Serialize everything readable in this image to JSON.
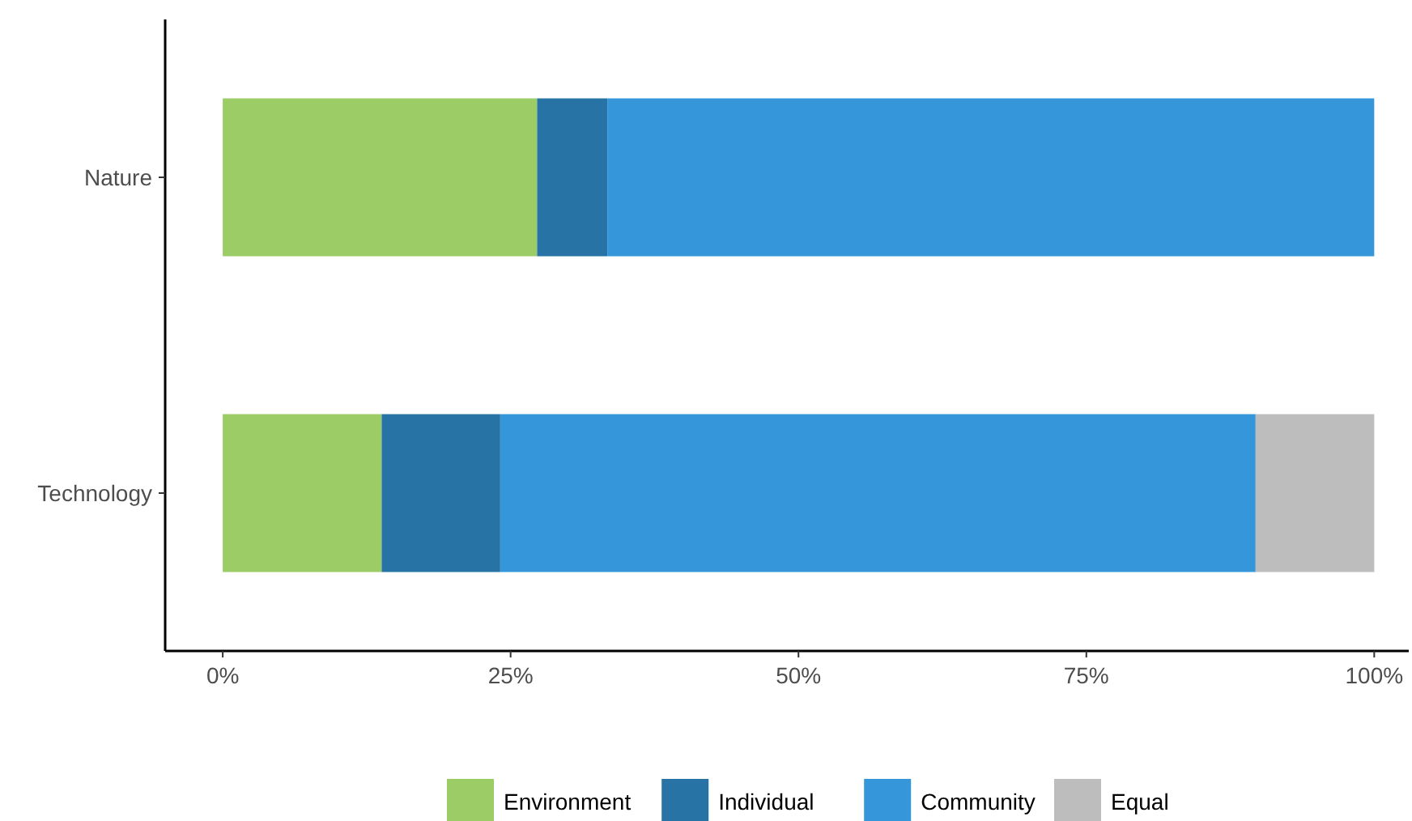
{
  "chart_data": {
    "type": "bar",
    "orientation": "horizontal",
    "stacked": true,
    "categories": [
      "Nature",
      "Technology"
    ],
    "series": [
      {
        "name": "Environment",
        "color": "#9ccc65",
        "values": [
          27.3,
          13.8
        ]
      },
      {
        "name": "Individual",
        "color": "#2873a6",
        "values": [
          6.1,
          10.3
        ]
      },
      {
        "name": "Community",
        "color": "#3597da",
        "values": [
          66.6,
          65.6
        ]
      },
      {
        "name": "Equal",
        "color": "#bdbdbd",
        "values": [
          null,
          10.3
        ]
      }
    ],
    "xlim": [
      -5,
      103
    ],
    "xticks": [
      {
        "value": 0,
        "label": "0%"
      },
      {
        "value": 25,
        "label": "25%"
      },
      {
        "value": 50,
        "label": "50%"
      },
      {
        "value": 75,
        "label": "75%"
      },
      {
        "value": 100,
        "label": "100%"
      }
    ],
    "grid": false,
    "legend": "bottom"
  }
}
